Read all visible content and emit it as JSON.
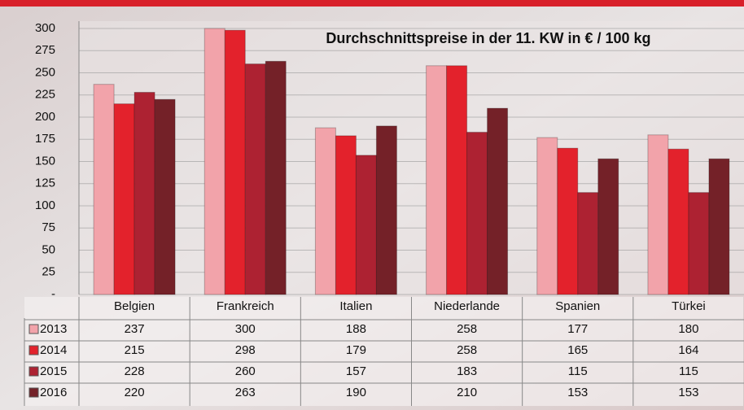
{
  "chart_data": {
    "type": "bar",
    "title": "Durchschnittspreise in der 11. KW in € / 100 kg",
    "categories": [
      "Belgien",
      "Frankreich",
      "Italien",
      "Niederlande",
      "Spanien",
      "Türkei"
    ],
    "series": [
      {
        "name": "2013",
        "color": "#f2a3aa",
        "values": [
          237,
          300,
          188,
          258,
          177,
          180
        ]
      },
      {
        "name": "2014",
        "color": "#e3222c",
        "values": [
          215,
          298,
          179,
          258,
          165,
          164
        ]
      },
      {
        "name": "2015",
        "color": "#ad2232",
        "values": [
          228,
          260,
          157,
          183,
          115,
          115
        ]
      },
      {
        "name": "2016",
        "color": "#742128",
        "values": [
          220,
          263,
          190,
          210,
          153,
          153
        ]
      }
    ],
    "ylim": [
      0,
      300
    ],
    "yticks": [
      {
        "value": 0,
        "label": "-"
      },
      25,
      50,
      75,
      100,
      125,
      150,
      175,
      200,
      225,
      250,
      275,
      300
    ],
    "grid": true
  }
}
